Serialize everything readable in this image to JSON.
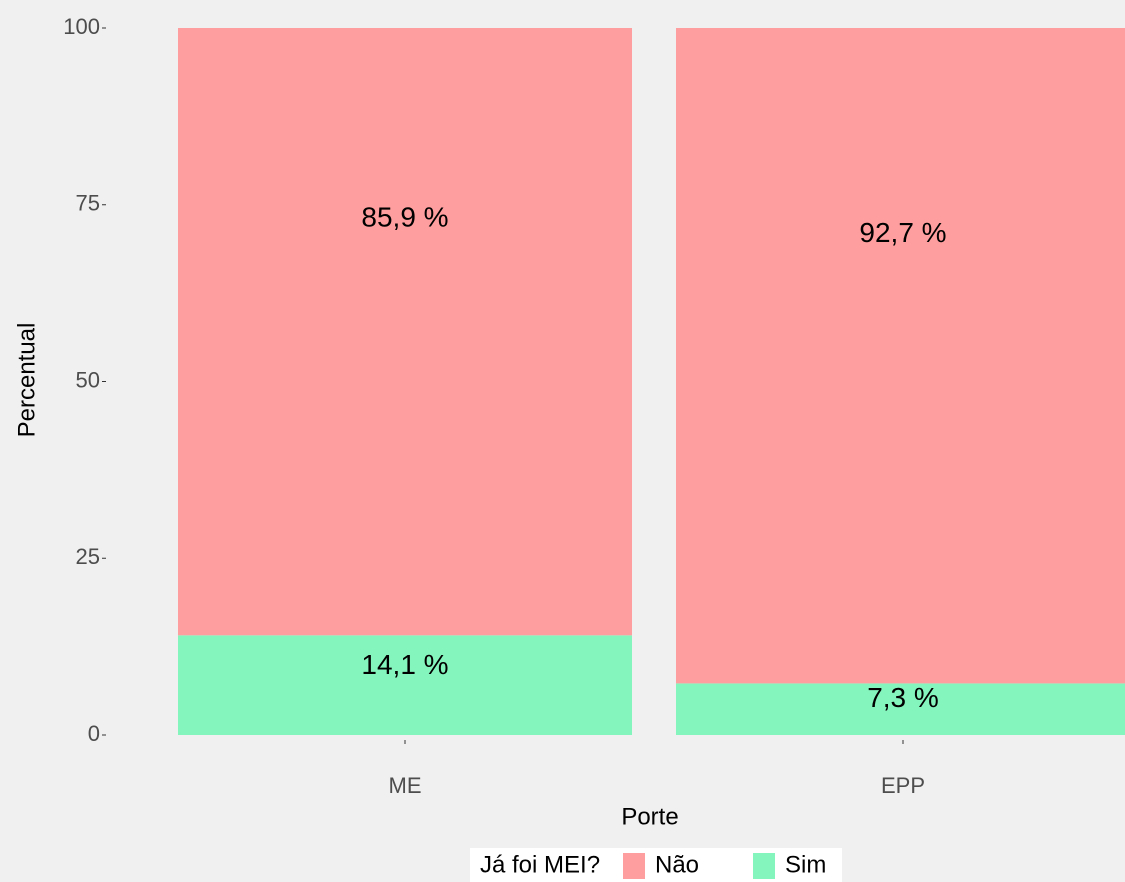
{
  "chart_data": {
    "type": "stacked_bar",
    "x_label": "Porte",
    "y_label": "Percentual",
    "categories": [
      "ME",
      "EPP"
    ],
    "series": [
      {
        "name": "Sim",
        "color": "#85f5be",
        "values": [
          14.1,
          7.3
        ],
        "value_labels": [
          "14,1 %",
          "7,3 %"
        ]
      },
      {
        "name": "Não",
        "color": "#ff9e9e",
        "values": [
          85.9,
          92.7
        ],
        "value_labels": [
          "85,9 %",
          "92,7 %"
        ]
      }
    ],
    "legend_title": "Já foi MEI?",
    "legend_order": [
      1,
      0
    ],
    "legend_position": "bottom",
    "ylim": [
      0,
      100
    ],
    "yticks": [
      0,
      25,
      50,
      75,
      100
    ],
    "grid": false
  }
}
